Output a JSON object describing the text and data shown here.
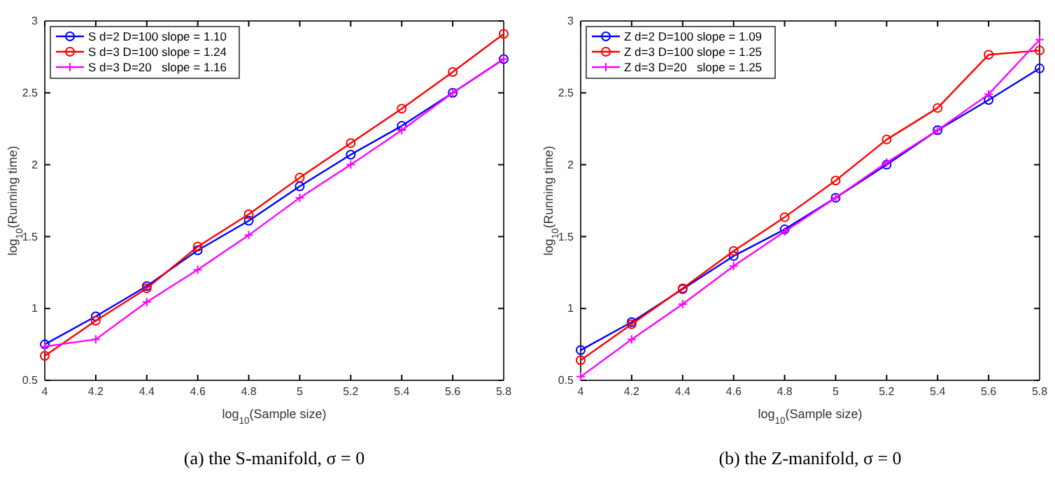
{
  "chart_data": [
    {
      "type": "line",
      "x": [
        4,
        4.2,
        4.4,
        4.6,
        4.8,
        5,
        5.2,
        5.4,
        5.6,
        5.8
      ],
      "xlim": [
        4,
        5.8
      ],
      "xticks": [
        4,
        4.2,
        4.4,
        4.6,
        4.8,
        5,
        5.2,
        5.4,
        5.6,
        5.8
      ],
      "ylim": [
        0.5,
        3
      ],
      "yticks": [
        0.5,
        1,
        1.5,
        2,
        2.5,
        3
      ],
      "xlabel": "log$_{10}$(Sample size)",
      "ylabel": "log$_{10}$(Running time)",
      "grid": false,
      "legend": "top left",
      "annotations": [
        "(a) the S-manifold, σ = 0"
      ],
      "series": [
        {
          "name": "S d=2 D=100 slope = 1.10",
          "color": "#0000ff",
          "marker": "circle",
          "values": [
            0.75,
            0.945,
            1.155,
            1.405,
            1.61,
            1.85,
            2.07,
            2.27,
            2.5,
            2.735
          ]
        },
        {
          "name": "S d=3 D=100 slope = 1.24",
          "color": "#ff0000",
          "marker": "circle",
          "values": [
            0.67,
            0.915,
            1.14,
            1.43,
            1.655,
            1.91,
            2.15,
            2.39,
            2.645,
            2.91
          ]
        },
        {
          "name": "S d=3 D=20   slope = 1.16",
          "color": "#ff00ff",
          "marker": "cross",
          "values": [
            0.735,
            0.785,
            1.045,
            1.27,
            1.51,
            1.77,
            2.0,
            2.24,
            2.5,
            2.735
          ]
        }
      ]
    },
    {
      "type": "line",
      "x": [
        4,
        4.2,
        4.4,
        4.6,
        4.8,
        5,
        5.2,
        5.4,
        5.6,
        5.8
      ],
      "xlim": [
        4,
        5.8
      ],
      "xticks": [
        4,
        4.2,
        4.4,
        4.6,
        4.8,
        5,
        5.2,
        5.4,
        5.6,
        5.8
      ],
      "ylim": [
        0.5,
        3
      ],
      "yticks": [
        0.5,
        1,
        1.5,
        2,
        2.5,
        3
      ],
      "xlabel": "log$_{10}$(Sample size)",
      "ylabel": "log$_{10}$(Running time)",
      "grid": false,
      "legend": "top left",
      "annotations": [
        "(b) the Z-manifold, σ = 0"
      ],
      "series": [
        {
          "name": "Z d=2 D=100 slope = 1.09",
          "color": "#0000ff",
          "marker": "circle",
          "values": [
            0.71,
            0.905,
            1.135,
            1.365,
            1.55,
            1.77,
            2.0,
            2.24,
            2.45,
            2.67
          ]
        },
        {
          "name": "Z d=3 D=100 slope = 1.25",
          "color": "#ff0000",
          "marker": "circle",
          "values": [
            0.64,
            0.89,
            1.14,
            1.4,
            1.635,
            1.89,
            2.175,
            2.395,
            2.765,
            2.795
          ]
        },
        {
          "name": "Z d=3 D=20   slope = 1.25",
          "color": "#ff00ff",
          "marker": "cross",
          "values": [
            0.525,
            0.785,
            1.03,
            1.295,
            1.535,
            1.77,
            2.015,
            2.24,
            2.49,
            2.87
          ]
        }
      ]
    }
  ]
}
